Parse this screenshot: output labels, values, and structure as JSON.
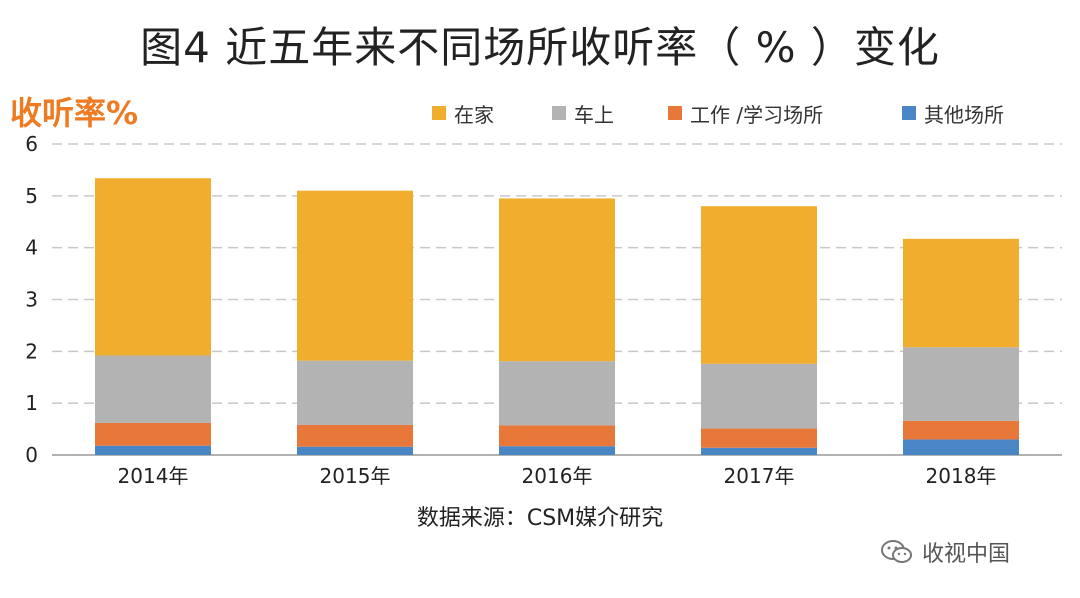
{
  "chart_data": {
    "type": "bar",
    "stacked": true,
    "title": "图4 近五年来不同场所收听率（ % ）变化",
    "ylabel": "收听率%",
    "xlabel": "",
    "categories": [
      "2014年",
      "2015年",
      "2016年",
      "2017年",
      "2018年"
    ],
    "ylim": [
      0,
      6
    ],
    "yticks": [
      "0",
      "1",
      "2",
      "3",
      "4",
      "5",
      "6"
    ],
    "grid": true,
    "legend_position": "top",
    "series": [
      {
        "name": "其他场所",
        "color": "#4a86c5",
        "values": [
          0.18,
          0.16,
          0.17,
          0.14,
          0.3
        ]
      },
      {
        "name": "工作 /学习场所",
        "color": "#e8773a",
        "values": [
          0.44,
          0.42,
          0.4,
          0.37,
          0.36
        ]
      },
      {
        "name": "车上",
        "color": "#b3b3b3",
        "values": [
          1.3,
          1.24,
          1.24,
          1.25,
          1.42
        ]
      },
      {
        "name": "在家",
        "color": "#f1ae2e",
        "values": [
          3.42,
          3.28,
          3.14,
          3.04,
          2.09
        ]
      }
    ],
    "legend_order": [
      "在家",
      "车上",
      "工作 /学习场所",
      "其他场所"
    ],
    "source": "数据来源：CSM媒介研究"
  },
  "watermark": {
    "text": "收视中国",
    "icon": "wechat-icon"
  }
}
